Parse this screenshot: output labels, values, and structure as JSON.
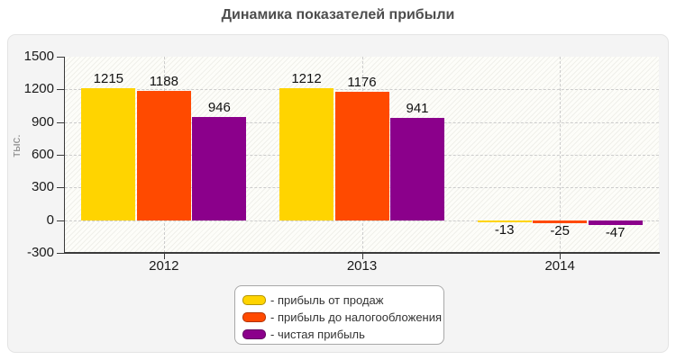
{
  "title": "Динамика показателей прибыли",
  "colors": {
    "card_background": "#f4f4f4",
    "plot_background": "#fdfdf9",
    "axis": "#3a3a3a",
    "grid": "#cccccc",
    "title_text": "#4d4d4d",
    "series_yellow": "#ffd400",
    "series_orange": "#ff4a00",
    "series_purple": "#8b008b"
  },
  "chart_data": {
    "type": "bar",
    "title": "Динамика показателей прибыли",
    "categories": [
      "2012",
      "2013",
      "2014"
    ],
    "series": [
      {
        "name": "прибыль от продаж",
        "color": "#ffd400",
        "values": [
          1215,
          1212,
          -13
        ]
      },
      {
        "name": "прибыль до налогообложения",
        "color": "#ff4a00",
        "values": [
          1188,
          1176,
          -25
        ]
      },
      {
        "name": "чистая прибыль",
        "color": "#8b008b",
        "values": [
          946,
          941,
          -47
        ]
      }
    ],
    "xlabel": "",
    "ylabel": "тыс.",
    "ylim": [
      -300,
      1500
    ],
    "yticks": [
      1500,
      1200,
      900,
      600,
      300,
      0,
      -300
    ],
    "grid": true,
    "legend_position": "bottom"
  },
  "legend": {
    "items": [
      {
        "label": "- прибыль от продаж",
        "color": "#ffd400"
      },
      {
        "label": "- прибыль до налогообложения",
        "color": "#ff4a00"
      },
      {
        "label": "- чистая прибыль",
        "color": "#8b008b"
      }
    ]
  }
}
